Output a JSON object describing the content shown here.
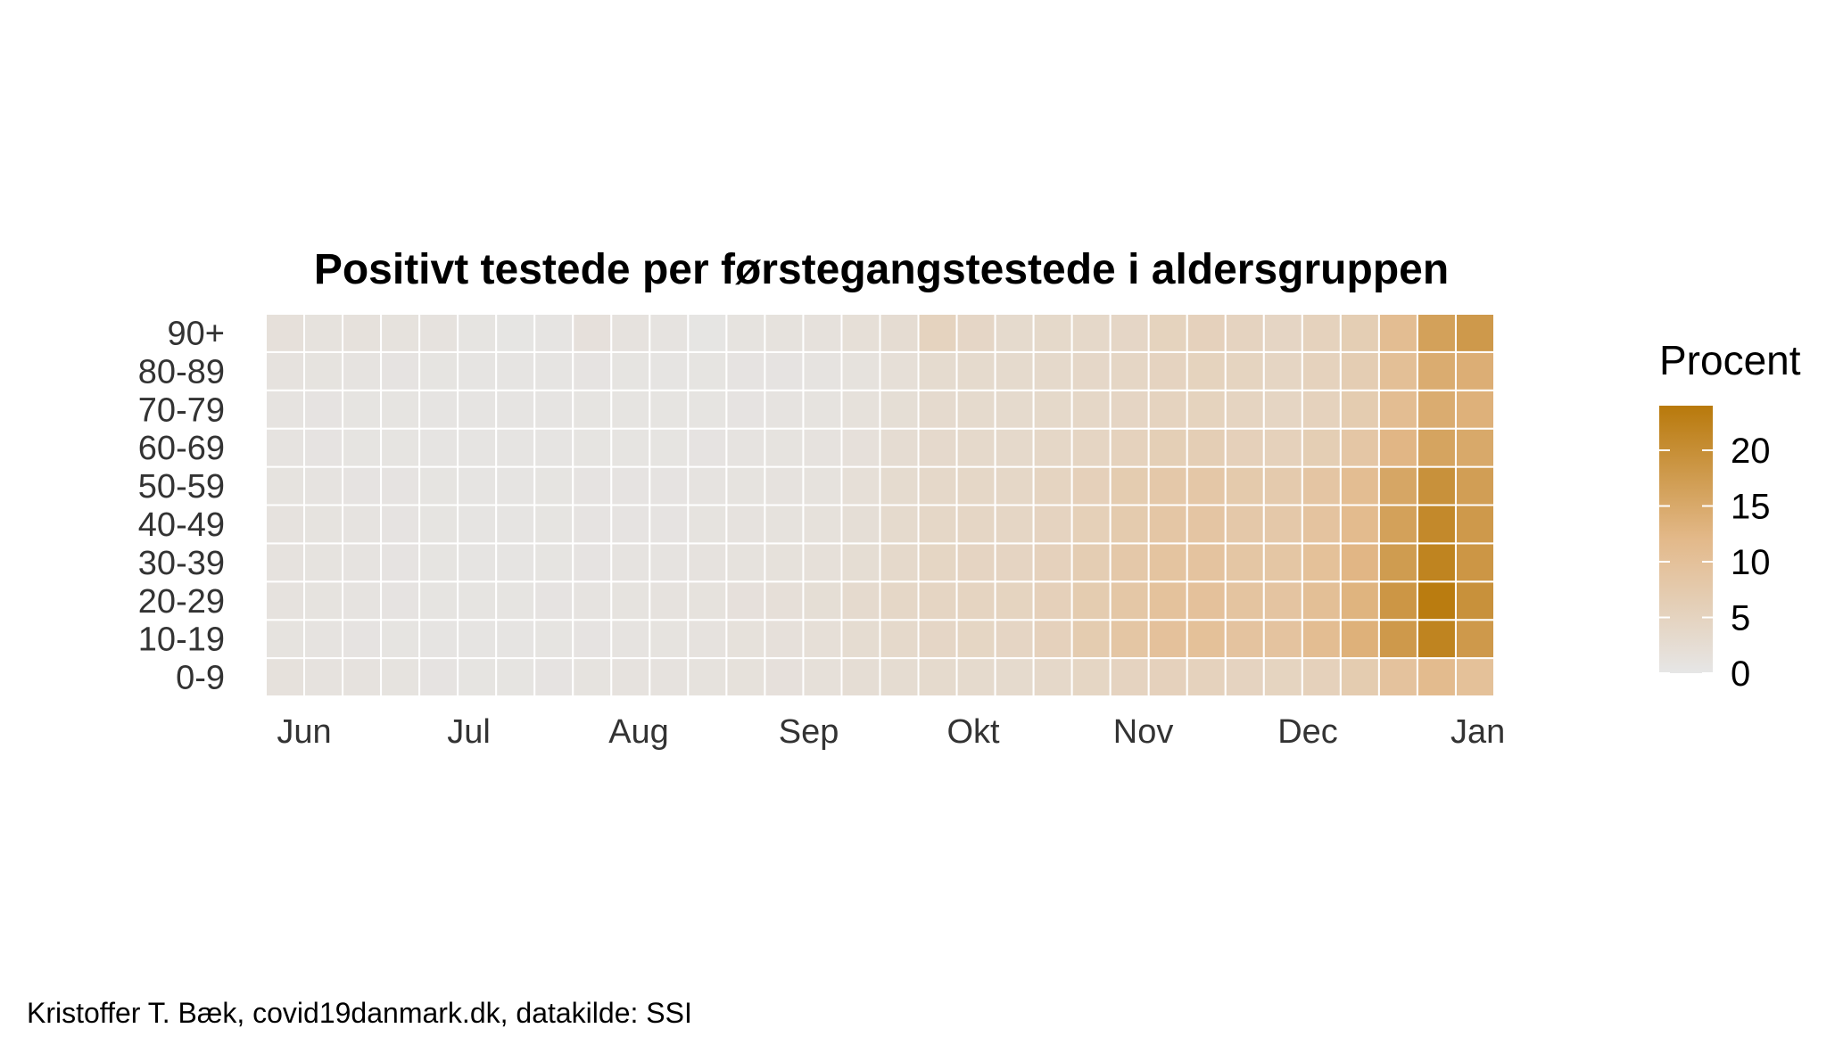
{
  "chart_data": {
    "type": "heatmap",
    "title": "Positivt testede per førstegangstestede i aldersgruppen",
    "xlabel": "",
    "ylabel": "",
    "x_ticks": [
      "Jun",
      "Jul",
      "Aug",
      "Sep",
      "Okt",
      "Nov",
      "Dec",
      "Jan"
    ],
    "x_range": [
      "2020-05-25",
      "2021-01-04"
    ],
    "x_week_starts": [
      "2020-05-25",
      "2020-06-01",
      "2020-06-08",
      "2020-06-15",
      "2020-06-22",
      "2020-06-29",
      "2020-07-06",
      "2020-07-13",
      "2020-07-20",
      "2020-07-27",
      "2020-08-03",
      "2020-08-10",
      "2020-08-17",
      "2020-08-24",
      "2020-08-31",
      "2020-09-07",
      "2020-09-14",
      "2020-09-21",
      "2020-09-28",
      "2020-10-05",
      "2020-10-12",
      "2020-10-19",
      "2020-10-26",
      "2020-11-02",
      "2020-11-09",
      "2020-11-16",
      "2020-11-23",
      "2020-11-30",
      "2020-12-07",
      "2020-12-14",
      "2020-12-21",
      "2020-12-28"
    ],
    "age_groups": [
      "0-9",
      "10-19",
      "20-29",
      "30-39",
      "40-49",
      "50-59",
      "60-69",
      "70-79",
      "80-89",
      "90+"
    ],
    "values_by_age": {
      "90+": [
        1.6,
        1.2,
        1.3,
        1.2,
        1.0,
        0.6,
        0.4,
        0.5,
        1.5,
        1.0,
        0.8,
        0.4,
        0.9,
        1.2,
        1.3,
        2.0,
        2.6,
        5.1,
        4.2,
        3.3,
        3.6,
        3.8,
        4.2,
        5.2,
        5.5,
        5.0,
        4.5,
        5.4,
        6.5,
        11.0,
        16.5,
        18.0
      ],
      "80-89": [
        1.0,
        0.9,
        0.8,
        0.7,
        0.6,
        0.5,
        0.5,
        0.5,
        0.7,
        0.6,
        0.5,
        0.6,
        0.7,
        0.7,
        0.8,
        1.2,
        2.0,
        3.0,
        3.3,
        3.2,
        3.5,
        3.9,
        4.3,
        5.0,
        5.2,
        4.9,
        4.6,
        5.3,
        6.6,
        10.5,
        14.5,
        14.0
      ],
      "70-79": [
        0.8,
        0.7,
        0.6,
        0.6,
        0.5,
        0.5,
        0.5,
        0.5,
        0.6,
        0.6,
        0.6,
        0.6,
        0.7,
        0.8,
        0.9,
        1.4,
        2.2,
        3.1,
        3.3,
        3.2,
        3.6,
        4.0,
        4.5,
        5.1,
        5.2,
        4.8,
        4.6,
        5.4,
        7.0,
        11.0,
        14.5,
        13.5
      ],
      "60-69": [
        0.8,
        0.7,
        0.6,
        0.6,
        0.5,
        0.5,
        0.5,
        0.5,
        0.6,
        0.6,
        0.6,
        0.7,
        0.8,
        0.9,
        1.0,
        1.6,
        2.6,
        3.4,
        3.5,
        3.5,
        4.0,
        4.6,
        5.4,
        6.2,
        6.4,
        5.8,
        5.6,
        6.5,
        8.5,
        12.5,
        16.0,
        15.0
      ],
      "50-59": [
        0.9,
        0.8,
        0.7,
        0.7,
        0.6,
        0.5,
        0.5,
        0.6,
        0.7,
        0.7,
        0.7,
        0.8,
        0.9,
        1.0,
        1.2,
        1.9,
        3.0,
        3.8,
        4.0,
        4.1,
        4.8,
        5.8,
        7.0,
        8.0,
        8.2,
        7.6,
        7.5,
        8.8,
        11.0,
        15.5,
        19.5,
        17.0
      ],
      "40-49": [
        1.0,
        0.9,
        0.8,
        0.7,
        0.6,
        0.5,
        0.5,
        0.6,
        0.7,
        0.7,
        0.7,
        0.9,
        1.0,
        1.2,
        1.4,
        2.1,
        3.2,
        4.1,
        4.3,
        4.3,
        5.0,
        6.0,
        7.3,
        8.5,
        8.8,
        8.0,
        8.0,
        9.3,
        11.5,
        16.5,
        21.0,
        18.0
      ],
      "30-39": [
        1.0,
        0.9,
        0.8,
        0.7,
        0.6,
        0.5,
        0.5,
        0.6,
        0.7,
        0.8,
        0.8,
        1.0,
        1.2,
        1.4,
        1.7,
        2.5,
        3.5,
        4.4,
        4.7,
        4.7,
        5.5,
        6.6,
        7.9,
        9.1,
        9.3,
        8.6,
        8.6,
        10.0,
        12.5,
        17.5,
        22.0,
        18.5
      ],
      "20-29": [
        1.1,
        0.9,
        0.8,
        0.7,
        0.6,
        0.6,
        0.6,
        0.7,
        0.8,
        0.9,
        1.0,
        1.2,
        1.5,
        1.8,
        2.2,
        3.1,
        4.0,
        4.6,
        4.8,
        4.9,
        5.8,
        7.0,
        8.4,
        9.6,
        9.8,
        9.1,
        9.0,
        10.5,
        13.0,
        18.5,
        23.5,
        19.5
      ],
      "10-19": [
        0.9,
        0.8,
        0.7,
        0.6,
        0.5,
        0.5,
        0.5,
        0.6,
        0.7,
        0.8,
        0.9,
        1.1,
        1.4,
        1.6,
        1.9,
        2.7,
        3.5,
        4.2,
        4.4,
        4.5,
        5.5,
        7.0,
        8.6,
        9.8,
        10.0,
        9.3,
        9.3,
        11.0,
        13.5,
        18.0,
        22.0,
        18.0
      ],
      "0-9": [
        1.3,
        1.1,
        1.0,
        0.9,
        0.7,
        0.6,
        0.6,
        0.7,
        0.9,
        1.0,
        1.0,
        1.2,
        1.4,
        1.5,
        1.7,
        2.3,
        2.8,
        3.2,
        3.3,
        3.3,
        3.8,
        4.4,
        5.0,
        5.5,
        5.4,
        5.0,
        4.9,
        5.6,
        7.0,
        9.5,
        11.5,
        10.0
      ]
    },
    "color_scale": {
      "title": "Procent",
      "ticks": [
        0,
        5,
        10,
        15,
        20
      ],
      "min": 0,
      "max": 24,
      "low_color": "#e6e6e6",
      "mid_color": "#e3b98a",
      "high_color": "#b8790b"
    },
    "grid": false,
    "legend_position": "right"
  },
  "caption": "Kristoffer T. Bæk, covid19danmark.dk, datakilde: SSI"
}
